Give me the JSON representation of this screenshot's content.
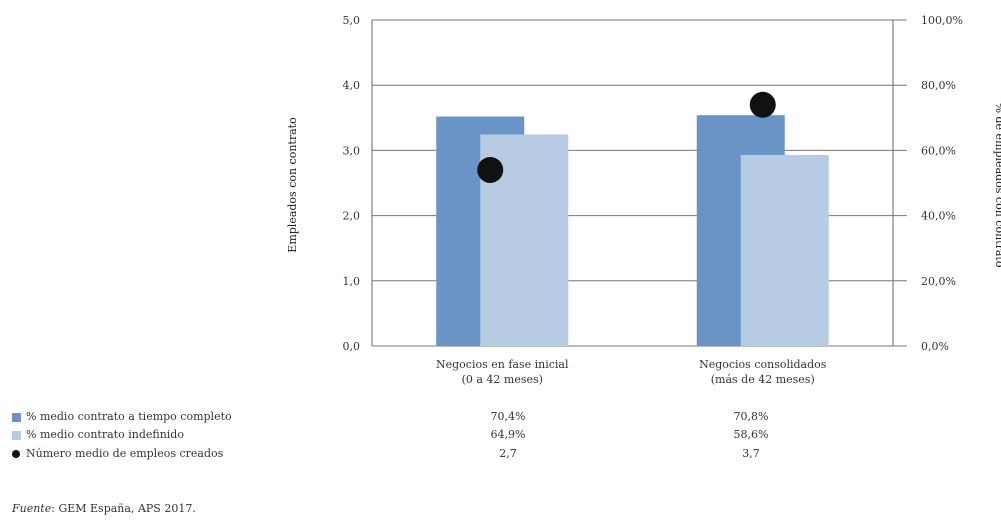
{
  "colors": {
    "series1": "#6a93c6",
    "series2": "#b7cbe3",
    "marker": "#111111",
    "axis": "#666666"
  },
  "chart_data": {
    "type": "bar",
    "categories": [
      [
        "Negocios en fase inicial",
        "(0 a 42 meses)"
      ],
      [
        "Negocios consolidados",
        "(más de 42 meses)"
      ]
    ],
    "series": [
      {
        "name": "% medio contrato a tiempo completo",
        "axis": "right",
        "values": [
          70.4,
          70.8
        ],
        "labels": [
          "70,4%",
          "70,8%"
        ]
      },
      {
        "name": "% medio contrato indefinido",
        "axis": "right",
        "values": [
          64.9,
          58.6
        ],
        "labels": [
          "64,9%",
          "58,6%"
        ]
      },
      {
        "name": "Número medio de empleos creados",
        "axis": "left",
        "type": "scatter",
        "values": [
          2.7,
          3.7
        ],
        "labels": [
          "2,7",
          "3,7"
        ]
      }
    ],
    "ylabel": "Empleados con contrato",
    "ylabel_right": "% de empleados con contrato",
    "ylim": [
      0,
      5
    ],
    "ylim_right": [
      0,
      100
    ],
    "yticks": [
      "0,0",
      "1,0",
      "2,0",
      "3,0",
      "4,0",
      "5,0"
    ],
    "yticks_right": [
      "0,0%",
      "20,0%",
      "40,0%",
      "60,0%",
      "80,0%",
      "100,0%"
    ],
    "grid": true
  },
  "source": {
    "prefix": "Fuente",
    "text": ": GEM España, APS 2017."
  }
}
